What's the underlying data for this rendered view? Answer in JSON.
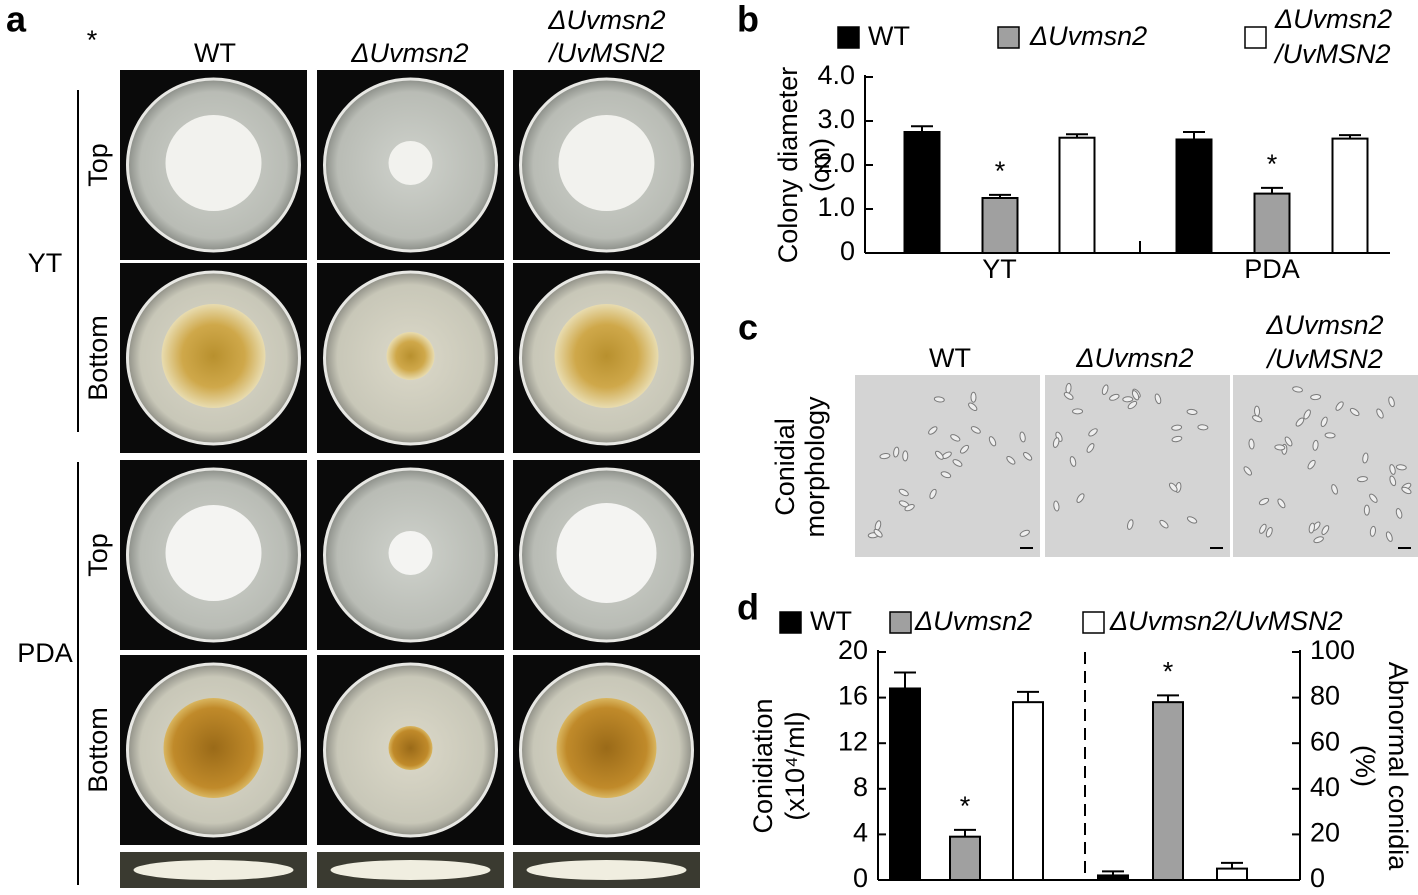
{
  "panels": {
    "a": {
      "panel_label": "a",
      "annotation": "*",
      "columns": [
        "WT",
        "ΔUvmsn2",
        "ΔUvmsn2",
        "/UvMSN2"
      ],
      "rows": [
        "Top",
        "Bottom",
        "Top",
        "Bottom"
      ],
      "media": [
        "YT",
        "PDA"
      ]
    },
    "c": {
      "panel_label": "c",
      "columns": [
        "WT",
        "ΔUvmsn2",
        "ΔUvmsn2",
        "/UvMSN2"
      ],
      "ylabel": [
        "Conidial",
        "morphology"
      ]
    }
  },
  "chart_data": [
    {
      "type": "bar",
      "panel_label": "b",
      "categories": [
        "YT",
        "PDA"
      ],
      "series": [
        {
          "name": "WT",
          "color": "#000000",
          "values": [
            2.75,
            2.58
          ],
          "errors": [
            0.13,
            0.17
          ]
        },
        {
          "name": "ΔUvmsn2",
          "color": "#a0a0a0",
          "values": [
            1.25,
            1.35
          ],
          "errors": [
            0.07,
            0.13
          ]
        },
        {
          "name": "ΔUvmsn2/UvMSN2",
          "color": "#ffffff",
          "values": [
            2.62,
            2.6
          ],
          "errors": [
            0.08,
            0.08
          ]
        }
      ],
      "ylim": [
        0,
        4
      ],
      "yticks": [
        0,
        {
          "value": 1,
          "label": "1.0"
        },
        {
          "value": 2,
          "label": "2.0"
        },
        {
          "value": 3,
          "label": "3.0"
        },
        {
          "value": 4,
          "label": "4.0"
        }
      ],
      "ylabel": [
        "Colony diameter",
        "(cm)"
      ],
      "annotations": [
        "*",
        "*"
      ]
    },
    {
      "type": "bar",
      "panel_label": "d",
      "categories": [
        null,
        null
      ],
      "category_axes": [
        "y",
        "y2"
      ],
      "series": [
        {
          "name": "WT",
          "color": "#000000",
          "values": [
            16.8,
            2
          ],
          "errors": [
            1.4,
            1.8
          ]
        },
        {
          "name": "ΔUvmsn2",
          "color": "#a0a0a0",
          "values": [
            3.8,
            78
          ],
          "errors": [
            0.6,
            3
          ]
        },
        {
          "name": "ΔUvmsn2/UvMSN2",
          "color": "#ffffff",
          "values": [
            15.6,
            5
          ],
          "errors": [
            0.9,
            2.5
          ]
        }
      ],
      "ylim": [
        0,
        20
      ],
      "yticks": [
        0,
        4,
        8,
        12,
        16,
        20
      ],
      "y2lim": [
        0,
        100
      ],
      "y2ticks": [
        0,
        20,
        40,
        60,
        80,
        100
      ],
      "ylabel": [
        "Conidiation",
        "(x10⁴/ml)"
      ],
      "y2label": [
        "Abnormal conidia",
        "(%)"
      ],
      "annotations": [
        "*",
        "*"
      ]
    }
  ]
}
